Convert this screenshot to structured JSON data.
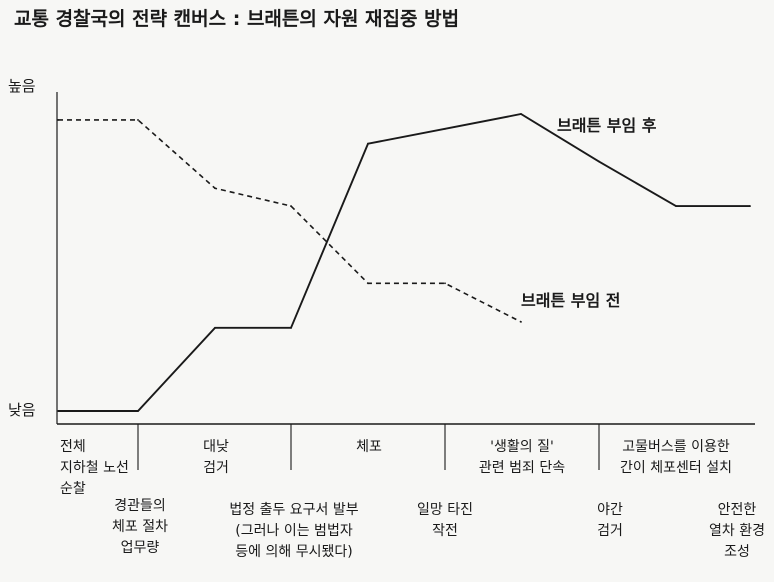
{
  "title": "교통 경찰국의 전략 캔버스 : 브래튼의 자원 재집중 방법",
  "chart_data": {
    "type": "line",
    "title": "교통 경찰국의 전략 캔버스 : 브래튼의 자원 재집중 방법",
    "ylabel_high": "높음",
    "ylabel_low": "낮음",
    "ylim": [
      0,
      10
    ],
    "categories": [
      "전체 지하철 노선 순찰",
      "경관들의 체포 절차 업무량",
      "대낮 검거",
      "법정 출두 요구서 발부 (그러나 이는 범법자 등에 의해 무시됐다)",
      "체포",
      "일망 타진 작전",
      "'생활의 질' 관련 범죄 단속",
      "야간 검거",
      "고물버스를 이용한 간이 체포센터 설치",
      "안전한 열차 환경 조성"
    ],
    "category_labels": [
      [
        "전체",
        "지하철 노선",
        "순찰"
      ],
      [
        "경관들의",
        "체포 절차",
        "업무량"
      ],
      [
        "대낮",
        "검거"
      ],
      [
        "법정 출두 요구서 발부",
        "(그러나 이는 범법자",
        "등에 의해 무시됐다)"
      ],
      [
        "체포"
      ],
      [
        "일망 타진",
        "작전"
      ],
      [
        "'생활의 질'",
        "관련 범죄 단속"
      ],
      [
        "야간",
        "검거"
      ],
      [
        "고물버스를 이용한",
        "간이 체포센터 설치"
      ],
      [
        "안전한",
        "열차 환경",
        "조성"
      ]
    ],
    "series": [
      {
        "name": "브래튼 부임 전",
        "style": "dashed",
        "values": [
          9.8,
          9.8,
          7.5,
          6.9,
          4.3,
          4.3,
          3.0,
          null,
          null,
          null
        ]
      },
      {
        "name": "브래튼 부임 후",
        "style": "solid",
        "values": [
          0.0,
          0.0,
          2.8,
          2.8,
          9.0,
          9.5,
          10.0,
          8.4,
          6.9,
          6.9
        ]
      }
    ],
    "grid": false,
    "line_color": "#1a1a1a"
  }
}
